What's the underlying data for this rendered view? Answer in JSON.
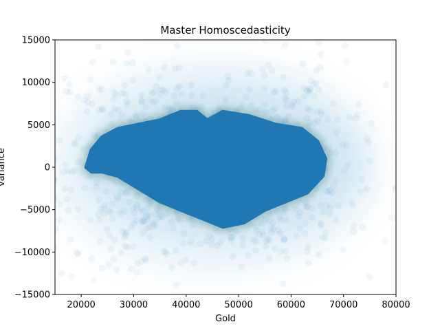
{
  "chart_data": {
    "type": "scatter",
    "title": "Master Homoscedasticity",
    "xlabel": "Gold",
    "ylabel": "variance",
    "xlim": [
      15000,
      80000
    ],
    "ylim": [
      -15000,
      15000
    ],
    "xticks": [
      20000,
      30000,
      40000,
      50000,
      60000,
      70000,
      80000
    ],
    "yticks": [
      -15000,
      -10000,
      -5000,
      0,
      5000,
      10000,
      15000
    ],
    "xtick_labels": [
      "20000",
      "30000",
      "40000",
      "50000",
      "60000",
      "70000",
      "80000"
    ],
    "ytick_labels": [
      "−15000",
      "−10000",
      "−5000",
      "0",
      "5000",
      "10000",
      "15000"
    ],
    "grid": false,
    "legend": "none",
    "point_color": "#1f77b4",
    "point_alpha": 0.02,
    "dense_core": {
      "outline": [
        [
          21000,
          0
        ],
        [
          22000,
          2000
        ],
        [
          24000,
          3500
        ],
        [
          27000,
          4500
        ],
        [
          31000,
          5000
        ],
        [
          35000,
          5500
        ],
        [
          39000,
          6500
        ],
        [
          42000,
          6500
        ],
        [
          44000,
          5500
        ],
        [
          47000,
          6500
        ],
        [
          52000,
          6000
        ],
        [
          57000,
          5000
        ],
        [
          62000,
          4500
        ],
        [
          65000,
          3000
        ],
        [
          66500,
          1000
        ],
        [
          66000,
          -1000
        ],
        [
          63000,
          -3000
        ],
        [
          59000,
          -4000
        ],
        [
          55000,
          -5000
        ],
        [
          51000,
          -6500
        ],
        [
          47000,
          -7000
        ],
        [
          43000,
          -6000
        ],
        [
          39000,
          -5000
        ],
        [
          35000,
          -4000
        ],
        [
          31000,
          -2500
        ],
        [
          27000,
          -1000
        ],
        [
          24000,
          -500
        ],
        [
          22000,
          -500
        ]
      ]
    },
    "density_bands": [
      {
        "x_center": 47000,
        "y_center": 500,
        "x_halfwidth": 27000,
        "y_halfwidth": 9500,
        "strength": 0.35
      },
      {
        "x_center": 45000,
        "y_center": 0,
        "x_halfwidth": 32000,
        "y_halfwidth": 13000,
        "strength": 0.18
      }
    ]
  }
}
